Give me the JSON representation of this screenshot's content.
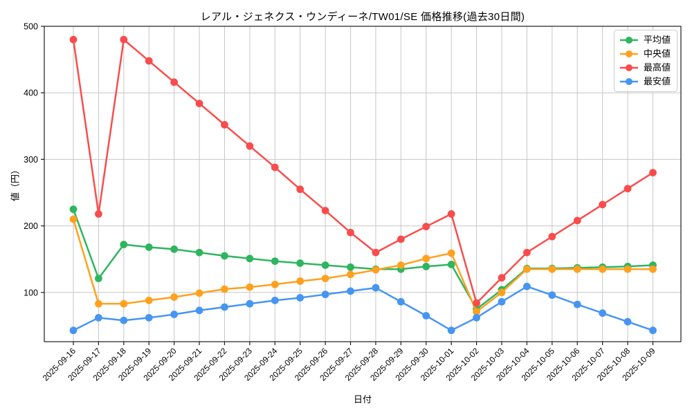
{
  "title": "レアル・ジェネクス・ウンディーネ/TW01/SE 価格推移(過去30日間)",
  "chart_data": {
    "type": "line",
    "xlabel": "日付",
    "ylabel": "値（円）",
    "ylim": [
      26,
      500
    ],
    "yticks": [
      100,
      200,
      300,
      400,
      500
    ],
    "grid": true,
    "legend_position": "upper right",
    "x": [
      "2025-09-16",
      "2025-09-17",
      "2025-09-18",
      "2025-09-19",
      "2025-09-20",
      "2025-09-21",
      "2025-09-22",
      "2025-09-23",
      "2025-09-24",
      "2025-09-25",
      "2025-09-26",
      "2025-09-27",
      "2025-09-28",
      "2025-09-29",
      "2025-09-30",
      "2025-10-01",
      "2025-10-02",
      "2025-10-03",
      "2025-10-04",
      "2025-10-05",
      "2025-10-06",
      "2025-10-07",
      "2025-10-08",
      "2025-10-09"
    ],
    "series": [
      {
        "key": "average",
        "label": "平均値",
        "color": "#2eb55f",
        "values": [
          225,
          121,
          172,
          168,
          165,
          160,
          155,
          151,
          147,
          144,
          141,
          138,
          135,
          135,
          139,
          142,
          75,
          104,
          136,
          136,
          137,
          138,
          139,
          141
        ]
      },
      {
        "key": "median",
        "label": "中央値",
        "color": "#ffa11f",
        "values": [
          210,
          83,
          83,
          88,
          93,
          99,
          105,
          108,
          112,
          117,
          121,
          127,
          134,
          141,
          151,
          159,
          71,
          100,
          135,
          135,
          135,
          135,
          135,
          135
        ]
      },
      {
        "key": "highest",
        "label": "最高値",
        "color": "#f94c4c",
        "values": [
          480,
          218,
          480,
          448,
          416,
          384,
          352,
          320,
          288,
          255,
          223,
          190,
          160,
          180,
          199,
          218,
          84,
          122,
          160,
          184,
          208,
          232,
          256,
          280
        ]
      },
      {
        "key": "lowest",
        "label": "最安値",
        "color": "#4695f2",
        "values": [
          43,
          62,
          58,
          62,
          67,
          73,
          78,
          83,
          88,
          92,
          97,
          102,
          107,
          86,
          65,
          43,
          62,
          86,
          109,
          96,
          82,
          69,
          56,
          43
        ]
      }
    ]
  }
}
